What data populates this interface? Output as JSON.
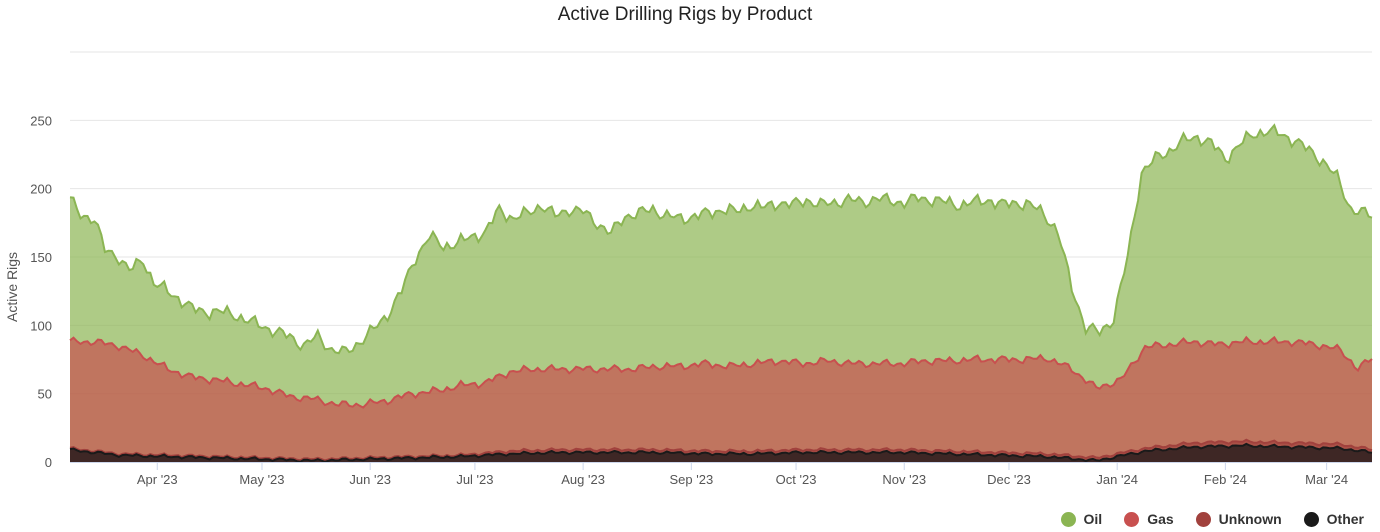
{
  "chart_data": {
    "type": "area",
    "stacked": true,
    "title": "Active Drilling Rigs by Product",
    "xlabel": "",
    "ylabel": "Active Rigs",
    "ylim": [
      0,
      300
    ],
    "yticks": [
      0,
      50,
      100,
      150,
      200,
      250
    ],
    "x_range": [
      "2023-03-07",
      "2024-03-14"
    ],
    "month_ticks": [
      {
        "date": "2023-04-01",
        "label": "Apr '23"
      },
      {
        "date": "2023-05-01",
        "label": "May '23"
      },
      {
        "date": "2023-06-01",
        "label": "Jun '23"
      },
      {
        "date": "2023-07-01",
        "label": "Jul '23"
      },
      {
        "date": "2023-08-01",
        "label": "Aug '23"
      },
      {
        "date": "2023-09-01",
        "label": "Sep '23"
      },
      {
        "date": "2023-10-01",
        "label": "Oct '23"
      },
      {
        "date": "2023-11-01",
        "label": "Nov '23"
      },
      {
        "date": "2023-12-01",
        "label": "Dec '23"
      },
      {
        "date": "2024-01-01",
        "label": "Jan '24"
      },
      {
        "date": "2024-02-01",
        "label": "Feb '24"
      },
      {
        "date": "2024-03-01",
        "label": "Mar '24"
      }
    ],
    "note": "Stacked cumulative totals by date (Other at bottom, then Unknown, Gas, Oil). Values read approximately from the chart.",
    "series": [
      {
        "name": "Oil",
        "color": "#8bb553",
        "points": [
          [
            "2023-03-07",
            192
          ],
          [
            "2023-03-10",
            181
          ],
          [
            "2023-03-14",
            178
          ],
          [
            "2023-03-17",
            155
          ],
          [
            "2023-03-21",
            150
          ],
          [
            "2023-03-24",
            140
          ],
          [
            "2023-03-28",
            148
          ],
          [
            "2023-03-31",
            131
          ],
          [
            "2023-04-04",
            125
          ],
          [
            "2023-04-07",
            120
          ],
          [
            "2023-04-11",
            112
          ],
          [
            "2023-04-15",
            110
          ],
          [
            "2023-04-19",
            110
          ],
          [
            "2023-04-23",
            108
          ],
          [
            "2023-04-27",
            103
          ],
          [
            "2023-05-01",
            100
          ],
          [
            "2023-05-05",
            95
          ],
          [
            "2023-05-09",
            92
          ],
          [
            "2023-05-13",
            85
          ],
          [
            "2023-05-17",
            92
          ],
          [
            "2023-05-21",
            82
          ],
          [
            "2023-05-25",
            80
          ],
          [
            "2023-05-29",
            88
          ],
          [
            "2023-06-02",
            97
          ],
          [
            "2023-06-06",
            108
          ],
          [
            "2023-06-10",
            125
          ],
          [
            "2023-06-14",
            150
          ],
          [
            "2023-06-18",
            165
          ],
          [
            "2023-06-22",
            158
          ],
          [
            "2023-06-26",
            160
          ],
          [
            "2023-06-30",
            165
          ],
          [
            "2023-07-04",
            168
          ],
          [
            "2023-07-08",
            185
          ],
          [
            "2023-07-12",
            178
          ],
          [
            "2023-07-16",
            182
          ],
          [
            "2023-07-20",
            188
          ],
          [
            "2023-07-24",
            180
          ],
          [
            "2023-07-28",
            185
          ],
          [
            "2023-08-01",
            183
          ],
          [
            "2023-08-05",
            175
          ],
          [
            "2023-08-09",
            167
          ],
          [
            "2023-08-13",
            180
          ],
          [
            "2023-08-17",
            182
          ],
          [
            "2023-08-21",
            185
          ],
          [
            "2023-08-25",
            180
          ],
          [
            "2023-08-29",
            178
          ],
          [
            "2023-09-02",
            180
          ],
          [
            "2023-09-06",
            182
          ],
          [
            "2023-09-10",
            185
          ],
          [
            "2023-09-14",
            183
          ],
          [
            "2023-09-18",
            188
          ],
          [
            "2023-09-22",
            186
          ],
          [
            "2023-09-26",
            190
          ],
          [
            "2023-09-30",
            188
          ],
          [
            "2023-10-04",
            192
          ],
          [
            "2023-10-08",
            188
          ],
          [
            "2023-10-12",
            190
          ],
          [
            "2023-10-16",
            192
          ],
          [
            "2023-10-20",
            190
          ],
          [
            "2023-10-24",
            193
          ],
          [
            "2023-10-28",
            191
          ],
          [
            "2023-11-01",
            190
          ],
          [
            "2023-11-05",
            193
          ],
          [
            "2023-11-09",
            192
          ],
          [
            "2023-11-13",
            190
          ],
          [
            "2023-11-17",
            188
          ],
          [
            "2023-11-21",
            190
          ],
          [
            "2023-11-25",
            192
          ],
          [
            "2023-11-29",
            188
          ],
          [
            "2023-12-03",
            190
          ],
          [
            "2023-12-07",
            188
          ],
          [
            "2023-12-11",
            182
          ],
          [
            "2023-12-15",
            168
          ],
          [
            "2023-12-19",
            128
          ],
          [
            "2023-12-23",
            98
          ],
          [
            "2023-12-27",
            95
          ],
          [
            "2023-12-31",
            105
          ],
          [
            "2024-01-04",
            150
          ],
          [
            "2024-01-08",
            212
          ],
          [
            "2024-01-12",
            222
          ],
          [
            "2024-01-16",
            228
          ],
          [
            "2024-01-20",
            235
          ],
          [
            "2024-01-24",
            238
          ],
          [
            "2024-01-28",
            233
          ],
          [
            "2024-02-01",
            222
          ],
          [
            "2024-02-05",
            232
          ],
          [
            "2024-02-09",
            240
          ],
          [
            "2024-02-13",
            242
          ],
          [
            "2024-02-17",
            240
          ],
          [
            "2024-02-21",
            235
          ],
          [
            "2024-02-25",
            228
          ],
          [
            "2024-02-29",
            220
          ],
          [
            "2024-03-04",
            208
          ],
          [
            "2024-03-08",
            185
          ],
          [
            "2024-03-14",
            180
          ]
        ]
      },
      {
        "name": "Gas",
        "color": "#c8504f",
        "points": [
          [
            "2023-03-07",
            88
          ],
          [
            "2023-03-14",
            88
          ],
          [
            "2023-03-21",
            85
          ],
          [
            "2023-03-28",
            78
          ],
          [
            "2023-04-04",
            68
          ],
          [
            "2023-04-11",
            62
          ],
          [
            "2023-04-18",
            60
          ],
          [
            "2023-04-25",
            57
          ],
          [
            "2023-05-02",
            54
          ],
          [
            "2023-05-09",
            48
          ],
          [
            "2023-05-16",
            46
          ],
          [
            "2023-05-23",
            42
          ],
          [
            "2023-05-30",
            42
          ],
          [
            "2023-06-06",
            45
          ],
          [
            "2023-06-13",
            50
          ],
          [
            "2023-06-20",
            52
          ],
          [
            "2023-06-27",
            56
          ],
          [
            "2023-07-04",
            58
          ],
          [
            "2023-07-11",
            66
          ],
          [
            "2023-07-18",
            68
          ],
          [
            "2023-07-25",
            68
          ],
          [
            "2023-08-01",
            68
          ],
          [
            "2023-08-08",
            68
          ],
          [
            "2023-08-15",
            68
          ],
          [
            "2023-08-22",
            70
          ],
          [
            "2023-08-29",
            70
          ],
          [
            "2023-09-05",
            72
          ],
          [
            "2023-09-12",
            70
          ],
          [
            "2023-09-19",
            72
          ],
          [
            "2023-09-26",
            74
          ],
          [
            "2023-10-03",
            72
          ],
          [
            "2023-10-10",
            74
          ],
          [
            "2023-10-17",
            72
          ],
          [
            "2023-10-24",
            72
          ],
          [
            "2023-10-31",
            72
          ],
          [
            "2023-11-07",
            74
          ],
          [
            "2023-11-14",
            74
          ],
          [
            "2023-11-21",
            75
          ],
          [
            "2023-11-28",
            75
          ],
          [
            "2023-12-05",
            75
          ],
          [
            "2023-12-12",
            76
          ],
          [
            "2023-12-19",
            68
          ],
          [
            "2023-12-26",
            54
          ],
          [
            "2024-01-02",
            60
          ],
          [
            "2024-01-09",
            84
          ],
          [
            "2024-01-16",
            86
          ],
          [
            "2024-01-23",
            88
          ],
          [
            "2024-01-30",
            86
          ],
          [
            "2024-02-06",
            88
          ],
          [
            "2024-02-13",
            88
          ],
          [
            "2024-02-20",
            88
          ],
          [
            "2024-02-27",
            86
          ],
          [
            "2024-03-05",
            82
          ],
          [
            "2024-03-10",
            68
          ],
          [
            "2024-03-14",
            76
          ]
        ]
      },
      {
        "name": "Unknown",
        "color": "#a1413d",
        "points": [
          [
            "2023-03-07",
            10
          ],
          [
            "2023-03-21",
            6
          ],
          [
            "2023-04-04",
            5
          ],
          [
            "2023-04-18",
            4
          ],
          [
            "2023-05-02",
            3
          ],
          [
            "2023-05-16",
            2
          ],
          [
            "2023-05-30",
            3
          ],
          [
            "2023-06-13",
            4
          ],
          [
            "2023-06-27",
            5
          ],
          [
            "2023-07-11",
            8
          ],
          [
            "2023-07-25",
            9
          ],
          [
            "2023-08-08",
            9
          ],
          [
            "2023-08-22",
            9
          ],
          [
            "2023-09-05",
            8
          ],
          [
            "2023-09-19",
            8
          ],
          [
            "2023-10-03",
            9
          ],
          [
            "2023-10-17",
            9
          ],
          [
            "2023-10-31",
            9
          ],
          [
            "2023-11-14",
            8
          ],
          [
            "2023-11-28",
            7
          ],
          [
            "2023-12-12",
            6
          ],
          [
            "2023-12-26",
            3
          ],
          [
            "2024-01-09",
            10
          ],
          [
            "2024-01-23",
            14
          ],
          [
            "2024-02-06",
            15
          ],
          [
            "2024-02-20",
            14
          ],
          [
            "2024-03-05",
            13
          ],
          [
            "2024-03-14",
            9
          ]
        ]
      },
      {
        "name": "Other",
        "color": "#1a1a1a",
        "points": [
          [
            "2023-03-07",
            9
          ],
          [
            "2023-03-21",
            5
          ],
          [
            "2023-04-04",
            4
          ],
          [
            "2023-04-18",
            3
          ],
          [
            "2023-05-02",
            2
          ],
          [
            "2023-05-16",
            1
          ],
          [
            "2023-05-30",
            2
          ],
          [
            "2023-06-13",
            3
          ],
          [
            "2023-06-27",
            4
          ],
          [
            "2023-07-11",
            6
          ],
          [
            "2023-07-25",
            7
          ],
          [
            "2023-08-08",
            7
          ],
          [
            "2023-08-22",
            7
          ],
          [
            "2023-09-05",
            6
          ],
          [
            "2023-09-19",
            6
          ],
          [
            "2023-10-03",
            7
          ],
          [
            "2023-10-17",
            7
          ],
          [
            "2023-10-31",
            7
          ],
          [
            "2023-11-14",
            6
          ],
          [
            "2023-11-28",
            5
          ],
          [
            "2023-12-12",
            4
          ],
          [
            "2023-12-26",
            1
          ],
          [
            "2024-01-09",
            8
          ],
          [
            "2024-01-23",
            11
          ],
          [
            "2024-02-06",
            12
          ],
          [
            "2024-02-20",
            11
          ],
          [
            "2024-03-05",
            10
          ],
          [
            "2024-03-14",
            7
          ]
        ]
      }
    ]
  },
  "legend": {
    "items": [
      {
        "label": "Oil",
        "color": "#8bb553"
      },
      {
        "label": "Gas",
        "color": "#c8504f"
      },
      {
        "label": "Unknown",
        "color": "#a1413d"
      },
      {
        "label": "Other",
        "color": "#1a1a1a"
      }
    ]
  }
}
